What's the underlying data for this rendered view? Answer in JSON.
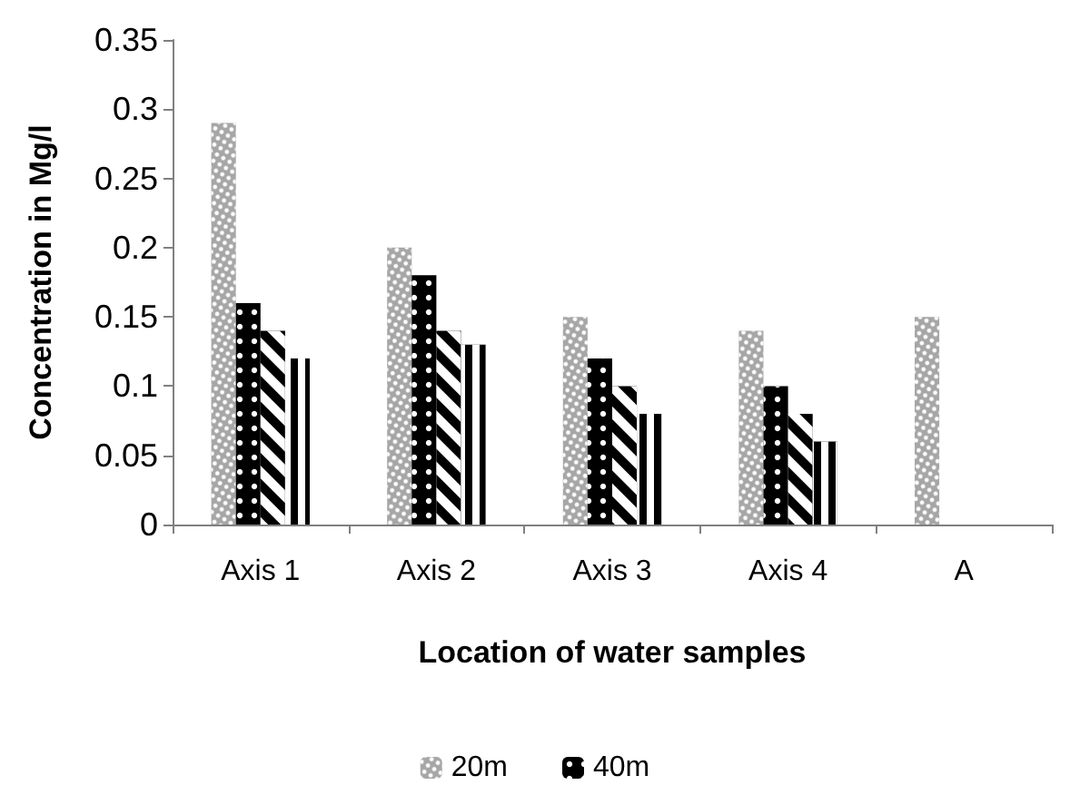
{
  "chart_data": {
    "type": "bar",
    "xlabel": "Location of water samples",
    "ylabel": "Concentration in Mg/l",
    "categories": [
      "Axis 1",
      "Axis 2",
      "Axis 3",
      "Axis 4",
      "A"
    ],
    "series": [
      {
        "name": "20m",
        "color": "#a6a6a6",
        "values": [
          0.29,
          0.2,
          0.15,
          0.14,
          0.15
        ]
      },
      {
        "name": "40m",
        "color": "#000000",
        "values": [
          0.16,
          0.18,
          0.12,
          0.1,
          null
        ]
      },
      {
        "color": "#000000",
        "values": [
          0.14,
          0.14,
          0.1,
          0.08,
          null
        ]
      },
      {
        "color": "#000000",
        "values": [
          0.12,
          0.13,
          0.08,
          0.06,
          null
        ]
      }
    ],
    "ylim": [
      0,
      0.35
    ],
    "yticks": [
      0,
      0.05,
      0.1,
      0.15,
      0.2,
      0.25,
      0.3,
      0.35
    ],
    "grid": false,
    "legend": "bottom"
  }
}
